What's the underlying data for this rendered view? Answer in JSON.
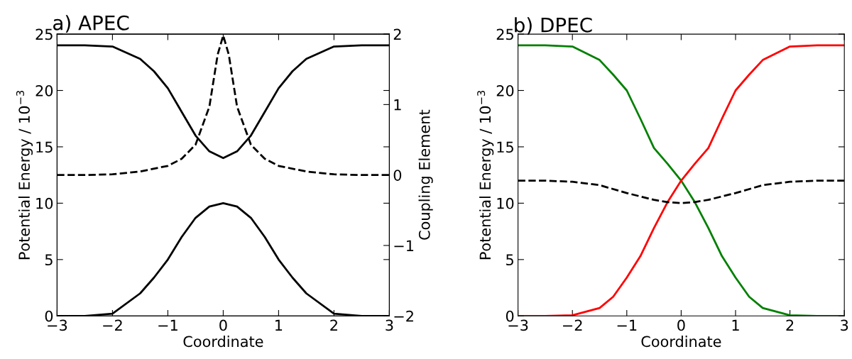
{
  "chart_data": [
    {
      "type": "line",
      "title": "a) APEC",
      "xlabel": "Coordinate",
      "ylabel": "Potential Energy / 10$^{−3}$",
      "y2label": "Coupling Element",
      "xlim": [
        -3,
        3
      ],
      "xticks": [
        {
          "value": -3,
          "label": "−3"
        },
        {
          "value": -2,
          "label": "−2"
        },
        {
          "value": -1,
          "label": "−1"
        },
        0,
        1,
        2,
        3
      ],
      "ylim": [
        0,
        25
      ],
      "yticks": [
        0,
        5,
        10,
        15,
        20,
        25
      ],
      "y2lim": [
        -2,
        2
      ],
      "y2ticks": [
        {
          "value": -2,
          "label": "−2"
        },
        {
          "value": -1,
          "label": "−1"
        },
        0,
        1,
        2
      ],
      "grid": false,
      "series": [
        {
          "color": "#000000",
          "line_style": "solid",
          "x": [
            -3,
            -2.5,
            -2,
            -1.5,
            -1.25,
            -1,
            -0.75,
            -0.5,
            -0.25,
            0,
            0.25,
            0.5,
            0.75,
            1,
            1.25,
            1.5,
            2,
            2.5,
            3
          ],
          "values": [
            24,
            24,
            23.9,
            22.8,
            21.7,
            20.2,
            18.1,
            16.0,
            14.6,
            14.0,
            14.6,
            16.0,
            18.1,
            20.2,
            21.7,
            22.8,
            23.9,
            24,
            24
          ]
        },
        {
          "color": "#000000",
          "line_style": "solid",
          "x": [
            -3,
            -2.5,
            -2,
            -1.5,
            -1.25,
            -1,
            -0.75,
            -0.5,
            -0.25,
            0,
            0.25,
            0.5,
            0.75,
            1,
            1.25,
            1.5,
            2,
            2.5,
            3
          ],
          "values": [
            0,
            0,
            0.2,
            2.0,
            3.4,
            5.0,
            7.0,
            8.7,
            9.7,
            10,
            9.7,
            8.7,
            7.0,
            5.0,
            3.4,
            2.0,
            0.2,
            0,
            0
          ]
        },
        {
          "color": "#000000",
          "line_style": "dashed",
          "axis": "y2",
          "x": [
            -3,
            -2.5,
            -2,
            -1.5,
            -1,
            -0.75,
            -0.5,
            -0.25,
            -0.1,
            0,
            0.1,
            0.25,
            0.5,
            0.75,
            1,
            1.5,
            2,
            2.5,
            3
          ],
          "values": [
            0,
            0,
            0.01,
            0.05,
            0.13,
            0.23,
            0.43,
            0.97,
            1.71,
            1.98,
            1.71,
            0.97,
            0.43,
            0.23,
            0.13,
            0.05,
            0.01,
            0,
            0
          ]
        }
      ]
    },
    {
      "type": "line",
      "title": "b) DPEC",
      "xlabel": "Coordinate",
      "ylabel": "Potential Energy / 10$^{−3}$",
      "xlim": [
        -3,
        3
      ],
      "xticks": [
        {
          "value": -3,
          "label": "−3"
        },
        {
          "value": -2,
          "label": "−2"
        },
        {
          "value": -1,
          "label": "−1"
        },
        0,
        1,
        2,
        3
      ],
      "ylim": [
        0,
        25
      ],
      "yticks": [
        0,
        5,
        10,
        15,
        20,
        25
      ],
      "grid": false,
      "series": [
        {
          "color": "#008000",
          "line_style": "solid",
          "x": [
            -3,
            -2.5,
            -2,
            -1.5,
            -1.25,
            -1,
            -0.75,
            -0.5,
            -0.25,
            0,
            0.25,
            0.5,
            0.75,
            1,
            1.25,
            1.5,
            2,
            2.5,
            3
          ],
          "values": [
            24,
            24,
            23.9,
            22.7,
            21.4,
            20.0,
            17.5,
            14.9,
            13.5,
            12.0,
            10.1,
            7.8,
            5.3,
            3.4,
            1.7,
            0.7,
            0.06,
            0,
            0
          ]
        },
        {
          "color": "#ff0000",
          "line_style": "solid",
          "x": [
            -3,
            -2.5,
            -2,
            -1.5,
            -1.25,
            -1,
            -0.75,
            -0.5,
            -0.25,
            0,
            0.25,
            0.5,
            0.75,
            1,
            1.25,
            1.5,
            2,
            2.5,
            3
          ],
          "values": [
            0,
            0,
            0.06,
            0.7,
            1.7,
            3.4,
            5.3,
            7.8,
            10.1,
            12.0,
            13.5,
            14.9,
            17.5,
            20.0,
            21.4,
            22.7,
            23.9,
            24,
            24
          ]
        },
        {
          "color": "#000000",
          "line_style": "dashed",
          "x": [
            -3,
            -2.5,
            -2,
            -1.5,
            -1,
            -0.5,
            -0.25,
            0,
            0.25,
            0.5,
            1,
            1.5,
            2,
            2.5,
            3
          ],
          "values": [
            12,
            12,
            11.9,
            11.6,
            10.9,
            10.3,
            10.1,
            10.0,
            10.1,
            10.3,
            10.9,
            11.6,
            11.9,
            12,
            12
          ]
        }
      ]
    }
  ]
}
